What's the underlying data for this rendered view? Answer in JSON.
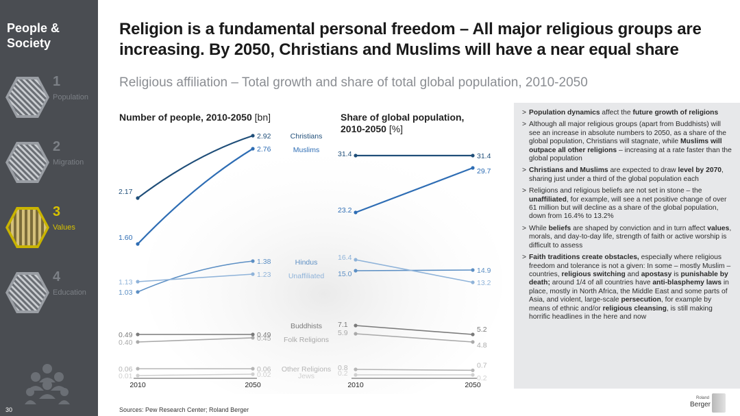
{
  "sidebar": {
    "section_title": "People & Society",
    "items": [
      {
        "num": "1",
        "label": "Population"
      },
      {
        "num": "2",
        "label": "Migration"
      },
      {
        "num": "3",
        "label": "Values"
      },
      {
        "num": "4",
        "label": "Education"
      }
    ],
    "page_number": "30"
  },
  "header": {
    "headline": "Religion is a fundamental personal freedom – All major religious groups are increasing. By 2050, Christians and Muslims will have a near equal share",
    "subtitle": "Religious affiliation – Total growth and share of total global population, 2010-2050"
  },
  "chart_data": [
    {
      "type": "line",
      "title": "Number of people, 2010-2050",
      "unit": "[bn]",
      "x": [
        "2010",
        "2050"
      ],
      "series": [
        {
          "name": "Christians",
          "values": [
            2.17,
            2.92
          ],
          "labels": [
            "2.17",
            "2.92"
          ],
          "color": "#1f4e79"
        },
        {
          "name": "Muslims",
          "values": [
            1.6,
            2.76
          ],
          "labels": [
            "1.60",
            "2.76"
          ],
          "color": "#2e6db4"
        },
        {
          "name": "Hindus",
          "values": [
            1.03,
            1.38
          ],
          "labels": [
            "1.03",
            "1.38"
          ],
          "color": "#5c8fc4"
        },
        {
          "name": "Unaffiliated",
          "values": [
            1.13,
            1.23
          ],
          "labels": [
            "1.13",
            "1.23"
          ],
          "color": "#8fb3d9"
        },
        {
          "name": "Buddhists",
          "values": [
            0.49,
            0.49
          ],
          "labels": [
            "0.49",
            "0.49"
          ],
          "color": "#7a7a7a"
        },
        {
          "name": "Folk Religions",
          "values": [
            0.4,
            0.45
          ],
          "labels": [
            "0.40",
            "0.45"
          ],
          "color": "#a9a9a9"
        },
        {
          "name": "Other Religions",
          "values": [
            0.06,
            0.06
          ],
          "labels": [
            "0.06",
            "0.06"
          ],
          "color": "#b5b5b5"
        },
        {
          "name": "Jews",
          "values": [
            0.01,
            0.02
          ],
          "labels": [
            "0.01",
            "0.02"
          ],
          "color": "#cfcfcf"
        }
      ]
    },
    {
      "type": "line",
      "title": "Share of global population, 2010-2050",
      "unit": "[%]",
      "x": [
        "2010",
        "2050"
      ],
      "series": [
        {
          "name": "Christians",
          "values": [
            31.4,
            31.4
          ],
          "labels": [
            "31.4",
            "31.4"
          ],
          "color": "#1f4e79"
        },
        {
          "name": "Muslims",
          "values": [
            23.2,
            29.7
          ],
          "labels": [
            "23.2",
            "29.7"
          ],
          "color": "#2e6db4"
        },
        {
          "name": "Hindus",
          "values": [
            15.0,
            14.9
          ],
          "labels": [
            "15.0",
            "14.9"
          ],
          "color": "#5c8fc4"
        },
        {
          "name": "Unaffiliated",
          "values": [
            16.4,
            13.2
          ],
          "labels": [
            "16.4",
            "13.2"
          ],
          "color": "#8fb3d9"
        },
        {
          "name": "Buddhists",
          "values": [
            7.1,
            5.2
          ],
          "labels": [
            "7.1",
            "5.2"
          ],
          "color": "#7a7a7a"
        },
        {
          "name": "Folk Religions",
          "values": [
            5.9,
            4.8
          ],
          "labels": [
            "5.9",
            "4.8"
          ],
          "color": "#a9a9a9"
        },
        {
          "name": "Other Religions",
          "values": [
            0.8,
            0.7
          ],
          "labels": [
            "0.8",
            "0.7"
          ],
          "color": "#b5b5b5"
        },
        {
          "name": "Jews",
          "values": [
            0.2,
            0.2
          ],
          "labels": [
            "0.2",
            "0.2"
          ],
          "color": "#cfcfcf"
        }
      ]
    }
  ],
  "notes": [
    [
      {
        "t": "Population dynamics",
        "b": true
      },
      {
        "t": " affect the "
      },
      {
        "t": "future growth of religions",
        "b": true
      }
    ],
    [
      {
        "t": "Although all major religious groups (apart from Buddhists) will see an increase in absolute numbers to 2050, as a share of the global population, Christians will stagnate, while "
      },
      {
        "t": "Muslims will outpace all other religions",
        "b": true
      },
      {
        "t": " – increasing at a rate faster than the global population"
      }
    ],
    [
      {
        "t": "Christians and Muslims",
        "b": true
      },
      {
        "t": " are expected to draw "
      },
      {
        "t": "level by 2070",
        "b": true
      },
      {
        "t": ", sharing just under a third of the global population each"
      }
    ],
    [
      {
        "t": "Religions and religious beliefs are not set in stone – the "
      },
      {
        "t": "unaffiliated",
        "b": true
      },
      {
        "t": ", for example, will see a net positive change of over 61 million but will decline as a share of the global population, down from 16.4% to 13.2%"
      }
    ],
    [
      {
        "t": "While "
      },
      {
        "t": "beliefs",
        "b": true
      },
      {
        "t": " are shaped by conviction and in turn affect "
      },
      {
        "t": "values",
        "b": true
      },
      {
        "t": ", morals, and day-to-day life, strength of faith or active worship is difficult to assess"
      }
    ],
    [
      {
        "t": "Faith traditions create obstacles,",
        "b": true
      },
      {
        "t": " especially where religious freedom and tolerance is not a given: In some – mostly Muslim – countries, "
      },
      {
        "t": "religious switching",
        "b": true
      },
      {
        "t": " and "
      },
      {
        "t": "apostasy",
        "b": true
      },
      {
        "t": " is "
      },
      {
        "t": "punishable by death;",
        "b": true
      },
      {
        "t": " around 1/4 of all countries have "
      },
      {
        "t": "anti-blasphemy laws",
        "b": true
      },
      {
        "t": " in place, mostly in North Africa, the Middle East and some parts of Asia, and violent, large-scale "
      },
      {
        "t": "persecution",
        "b": true
      },
      {
        "t": ", for example by means of ethnic and/or "
      },
      {
        "t": "religious cleansing",
        "b": true
      },
      {
        "t": ", is still making horrific headlines in the here and now"
      }
    ]
  ],
  "footer": {
    "sources": "Sources: Pew Research Center; Roland Berger",
    "logo_small": "Roland",
    "logo_big": "Berger"
  }
}
